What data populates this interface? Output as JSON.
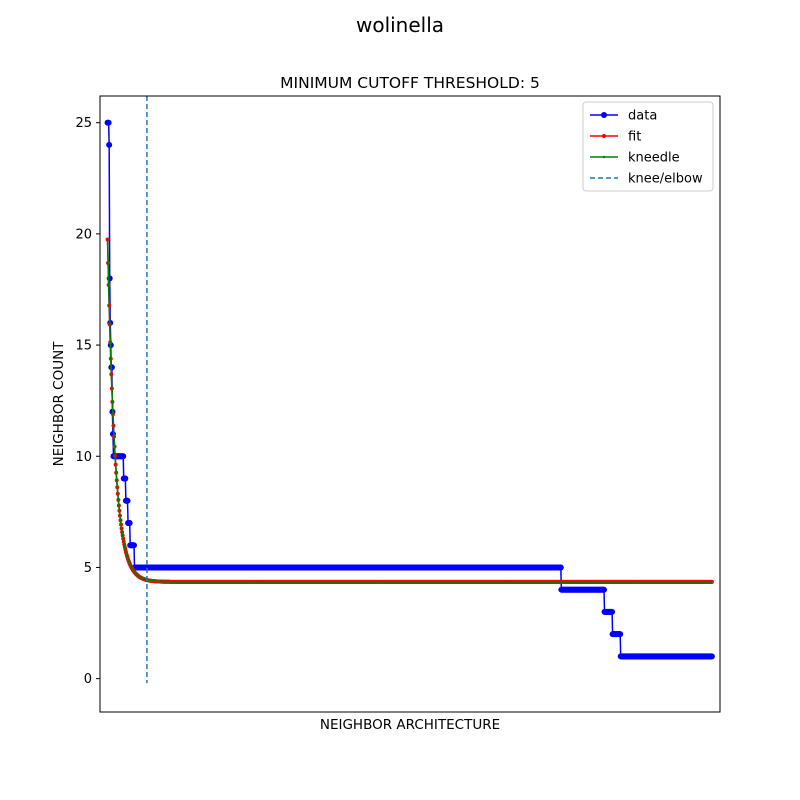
{
  "figure": {
    "suptitle": "wolinella"
  },
  "chart_data": {
    "type": "line",
    "title": "MINIMUM CUTOFF THRESHOLD: 5",
    "xlabel": "NEIGHBOR ARCHITECTURE",
    "ylabel": "NEIGHBOR COUNT",
    "x_ticks_visible": false,
    "xlim": [
      -14,
      1135
    ],
    "ylim": [
      -1.5,
      26.2
    ],
    "yticks": [
      0,
      5,
      10,
      15,
      20,
      25
    ],
    "grid": false,
    "legend": {
      "position": "top-right",
      "entries": [
        "data",
        "fit",
        "kneedle",
        "knee/elbow"
      ]
    },
    "colors": {
      "data": "#0000ff",
      "fit": "#ff0000",
      "kneedle": "#008000",
      "knee": "#1f77b4"
    },
    "series": [
      {
        "name": "data",
        "style": "line-markers",
        "steps": [
          {
            "x_start": 0,
            "x_end": 2,
            "y": 25
          },
          {
            "x_start": 3,
            "x_end": 3,
            "y": 24
          },
          {
            "x_start": 4,
            "x_end": 4,
            "y": 18
          },
          {
            "x_start": 5,
            "x_end": 5,
            "y": 16
          },
          {
            "x_start": 6,
            "x_end": 6,
            "y": 15
          },
          {
            "x_start": 7,
            "x_end": 8,
            "y": 14
          },
          {
            "x_start": 9,
            "x_end": 9,
            "y": 12
          },
          {
            "x_start": 10,
            "x_end": 10,
            "y": 11
          },
          {
            "x_start": 11,
            "x_end": 29,
            "y": 10
          },
          {
            "x_start": 30,
            "x_end": 33,
            "y": 9
          },
          {
            "x_start": 34,
            "x_end": 37,
            "y": 8
          },
          {
            "x_start": 38,
            "x_end": 41,
            "y": 7
          },
          {
            "x_start": 42,
            "x_end": 49,
            "y": 6
          },
          {
            "x_start": 50,
            "x_end": 840,
            "y": 5
          },
          {
            "x_start": 841,
            "x_end": 920,
            "y": 4
          },
          {
            "x_start": 921,
            "x_end": 935,
            "y": 3
          },
          {
            "x_start": 936,
            "x_end": 950,
            "y": 2
          },
          {
            "x_start": 951,
            "x_end": 1120,
            "y": 1
          }
        ]
      },
      {
        "name": "fit",
        "style": "line-markers",
        "model": {
          "form": "exponential-decay",
          "asymptote": 4.35,
          "amplitude": 15.4,
          "decay_length": 14
        },
        "x_range": [
          0,
          1120
        ]
      },
      {
        "name": "kneedle",
        "style": "line-small-markers",
        "same_as": "fit"
      },
      {
        "name": "knee/elbow",
        "style": "dashed-vertical",
        "x": 73
      }
    ]
  }
}
